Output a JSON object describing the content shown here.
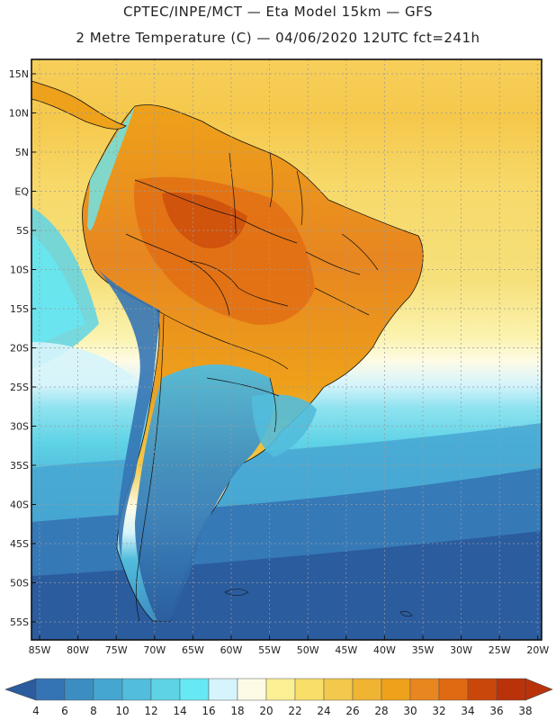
{
  "header": {
    "line1": "CPTEC/INPE/MCT —  Eta Model 15km — GFS",
    "line2": "2 Metre Temperature (C) — 04/06/2020 12UTC fct=241h"
  },
  "map": {
    "lat_ticks": [
      "15N",
      "10N",
      "5N",
      "EQ",
      "5S",
      "10S",
      "15S",
      "20S",
      "25S",
      "30S",
      "35S",
      "40S",
      "45S",
      "50S",
      "55S"
    ],
    "lon_ticks": [
      "85W",
      "80W",
      "75W",
      "70W",
      "65W",
      "60W",
      "55W",
      "50W",
      "45W",
      "40W",
      "35W",
      "30W",
      "25W",
      "20W"
    ]
  },
  "colorbar": {
    "labels": [
      "4",
      "6",
      "8",
      "10",
      "12",
      "14",
      "16",
      "18",
      "20",
      "22",
      "24",
      "26",
      "28",
      "30",
      "32",
      "34",
      "36",
      "38"
    ],
    "colors": [
      "#2b5c9e",
      "#3474b4",
      "#3c8dc2",
      "#46a6d2",
      "#52bddc",
      "#5fd3e6",
      "#66e9f4",
      "#d6f4fb",
      "#fdfbe6",
      "#fbf094",
      "#f8df6a",
      "#f3c94d",
      "#efb432",
      "#eea11a",
      "#e88620",
      "#e06a12",
      "#c9470a",
      "#b9320a"
    ]
  },
  "palette": {
    "frame": "#111111",
    "grid": "#9a9a9a",
    "ocean_s": "#2a5ca0"
  }
}
